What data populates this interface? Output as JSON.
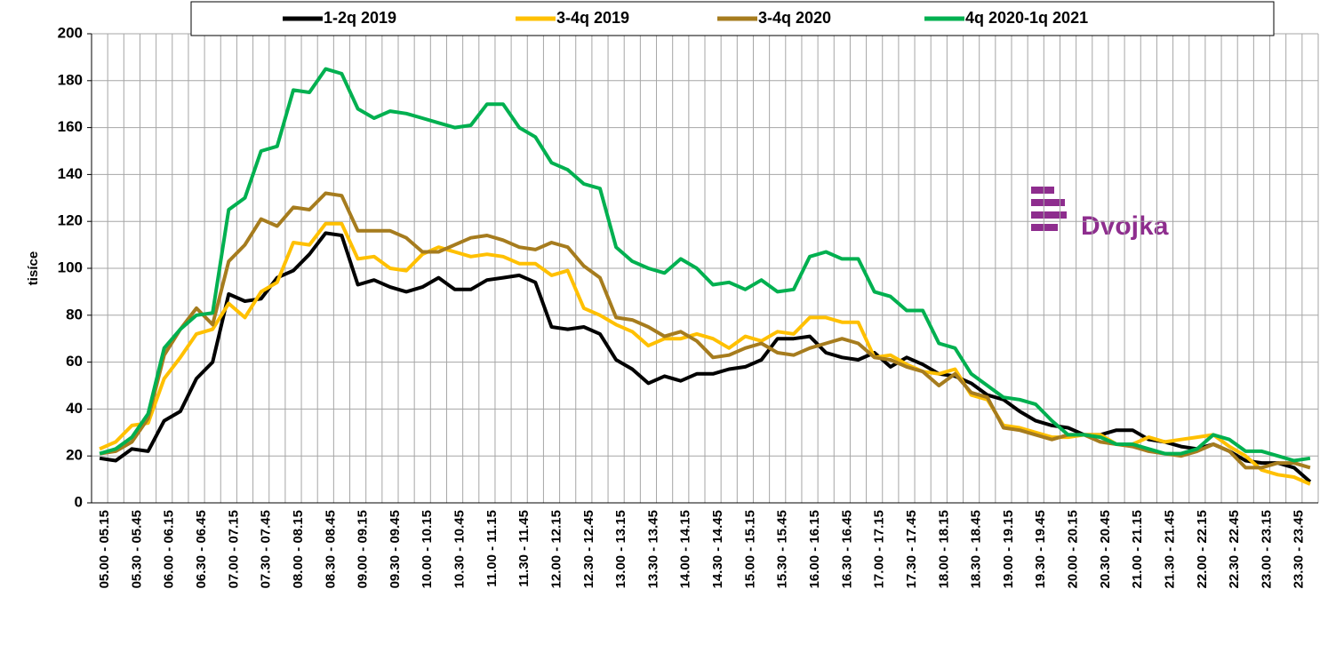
{
  "chart_data": {
    "type": "line",
    "y_label": "tisíce",
    "logo_text": "Dvojka",
    "categories": [
      "05.00 - 05.15",
      null,
      "05.30 - 05.45",
      null,
      "06.00 - 06.15",
      null,
      "06.30 - 06.45",
      null,
      "07.00 - 07.15",
      null,
      "07.30 - 07.45",
      null,
      "08.00 - 08.15",
      null,
      "08.30 - 08.45",
      null,
      "09.00 - 09.15",
      null,
      "09.30 - 09.45",
      null,
      "10.00 - 10.15",
      null,
      "10.30 - 10.45",
      null,
      "11.00 - 11.15",
      null,
      "11.30 - 11.45",
      null,
      "12.00 - 12.15",
      null,
      "12.30 - 12.45",
      null,
      "13.00 - 13.15",
      null,
      "13.30 - 13.45",
      null,
      "14.00 - 14.15",
      null,
      "14.30 - 14.45",
      null,
      "15.00 - 15.15",
      null,
      "15.30 - 15.45",
      null,
      "16.00 - 16.15",
      null,
      "16.30 - 16.45",
      null,
      "17.00 - 17.15",
      null,
      "17.30 - 17.45",
      null,
      "18.00 - 18.15",
      null,
      "18.30 - 18.45",
      null,
      "19.00 - 19.15",
      null,
      "19.30 - 19.45",
      null,
      "20.00 - 20.15",
      null,
      "20.30 - 20.45",
      null,
      "21.00 - 21.15",
      null,
      "21.30 - 21.45",
      null,
      "22.00 - 22.15",
      null,
      "22.30 - 22.45",
      null,
      "23.00 - 23.15",
      null,
      "23.30 - 23.45",
      null
    ],
    "series": [
      {
        "name": "1-2q 2019",
        "color": "#000000",
        "values": [
          19,
          18,
          23,
          22,
          35,
          39,
          53,
          60,
          89,
          86,
          87,
          96,
          99,
          106,
          115,
          114,
          93,
          95,
          92,
          90,
          92,
          96,
          91,
          91,
          95,
          96,
          97,
          94,
          75,
          74,
          75,
          72,
          61,
          57,
          51,
          54,
          52,
          55,
          55,
          57,
          58,
          61,
          70,
          70,
          71,
          64,
          62,
          61,
          64,
          58,
          62,
          59,
          55,
          54,
          51,
          46,
          44,
          39,
          35,
          33,
          32,
          29,
          29,
          31,
          31,
          27,
          26,
          24,
          23,
          25,
          22,
          18,
          17,
          17,
          15,
          9
        ]
      },
      {
        "name": "3-4q 2019",
        "color": "#ffc000",
        "values": [
          23,
          26,
          33,
          34,
          53,
          62,
          72,
          74,
          85,
          79,
          90,
          94,
          111,
          110,
          119,
          119,
          104,
          105,
          100,
          99,
          106,
          109,
          107,
          105,
          106,
          105,
          102,
          102,
          97,
          99,
          83,
          80,
          76,
          73,
          67,
          70,
          70,
          72,
          70,
          66,
          71,
          69,
          73,
          72,
          79,
          79,
          77,
          77,
          62,
          63,
          59,
          56,
          55,
          57,
          46,
          44,
          33,
          32,
          30,
          28,
          28,
          29,
          29,
          25,
          25,
          28,
          26,
          27,
          28,
          29,
          24,
          20,
          14,
          12,
          11,
          8
        ]
      },
      {
        "name": "3-4q 2020",
        "color": "#a67c1e",
        "values": [
          21,
          22,
          26,
          36,
          63,
          74,
          83,
          76,
          103,
          110,
          121,
          118,
          126,
          125,
          132,
          131,
          116,
          116,
          116,
          113,
          107,
          107,
          110,
          113,
          114,
          112,
          109,
          108,
          111,
          109,
          101,
          96,
          79,
          78,
          75,
          71,
          73,
          69,
          62,
          63,
          66,
          68,
          64,
          63,
          66,
          68,
          70,
          68,
          62,
          61,
          58,
          56,
          50,
          55,
          47,
          45,
          32,
          31,
          29,
          27,
          29,
          29,
          26,
          25,
          24,
          22,
          21,
          20,
          22,
          25,
          22,
          15,
          15,
          17,
          17,
          15
        ]
      },
      {
        "name": "4q 2020-1q 2021",
        "color": "#00b050",
        "values": [
          21,
          23,
          28,
          38,
          66,
          74,
          80,
          81,
          125,
          130,
          150,
          152,
          176,
          175,
          185,
          183,
          168,
          164,
          167,
          166,
          164,
          162,
          160,
          161,
          170,
          170,
          160,
          156,
          145,
          142,
          136,
          134,
          109,
          103,
          100,
          98,
          104,
          100,
          93,
          94,
          91,
          95,
          90,
          91,
          105,
          107,
          104,
          104,
          90,
          88,
          82,
          82,
          68,
          66,
          55,
          50,
          45,
          44,
          42,
          35,
          29,
          29,
          28,
          25,
          25,
          23,
          21,
          21,
          23,
          29,
          27,
          22,
          22,
          20,
          18,
          19
        ]
      }
    ],
    "ylim": [
      0,
      200
    ],
    "yticks": [
      0,
      20,
      40,
      60,
      80,
      100,
      120,
      140,
      160,
      180,
      200
    ],
    "grid": true
  }
}
